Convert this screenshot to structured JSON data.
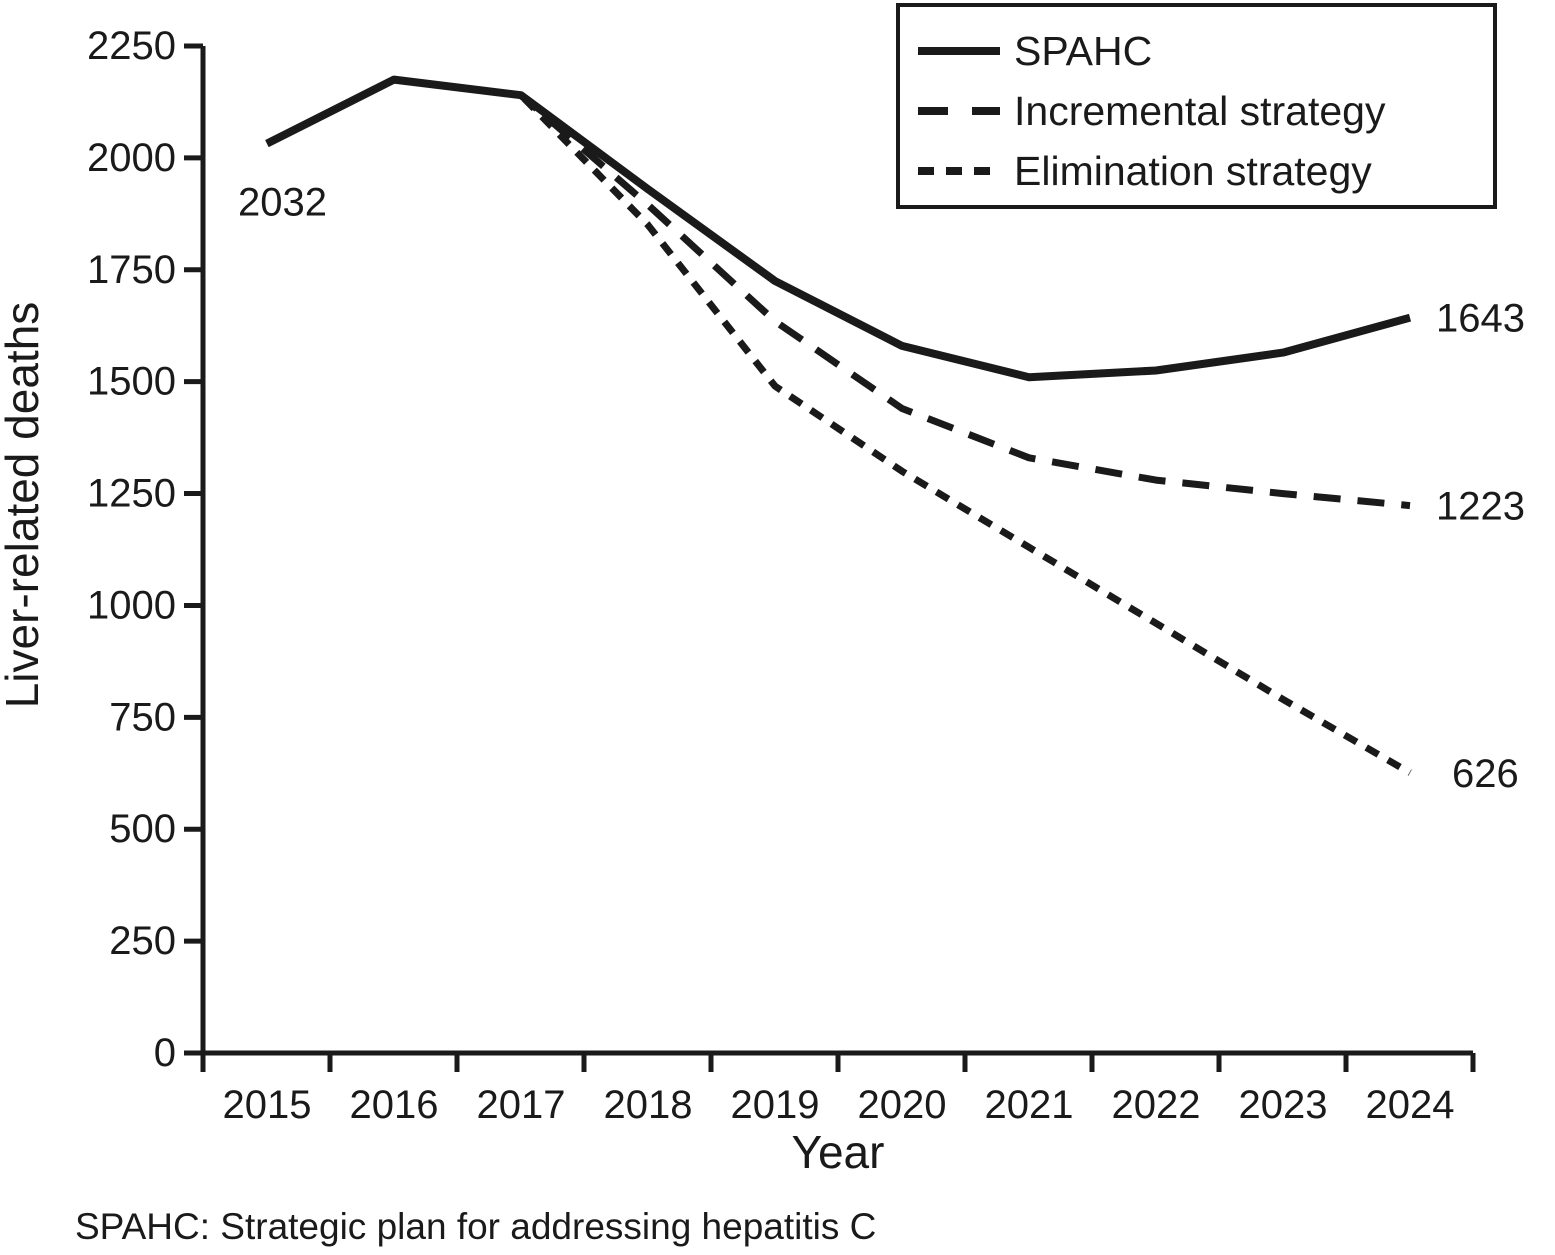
{
  "chart_data": {
    "type": "line",
    "title": "",
    "xlabel": "Year",
    "ylabel": "Liver-related deaths",
    "x": [
      2015,
      2016,
      2017,
      2018,
      2019,
      2020,
      2021,
      2022,
      2023,
      2024
    ],
    "ylim": [
      0,
      2250
    ],
    "yticks": [
      0,
      250,
      500,
      750,
      1000,
      1250,
      1500,
      1750,
      2000,
      2250
    ],
    "grid": false,
    "legend_position": "top-right",
    "series": [
      {
        "name": "SPAHC",
        "style": "solid",
        "values": [
          2032,
          2175,
          2140,
          1930,
          1725,
          1580,
          1510,
          1525,
          1565,
          1643
        ]
      },
      {
        "name": "Incremental strategy",
        "style": "long-dash",
        "values": [
          2032,
          2175,
          2140,
          1895,
          1635,
          1440,
          1330,
          1280,
          1250,
          1223
        ]
      },
      {
        "name": "Elimination strategy",
        "style": "short-dash",
        "values": [
          2032,
          2175,
          2140,
          1850,
          1490,
          1300,
          1130,
          960,
          790,
          626
        ]
      }
    ],
    "annotations": [
      {
        "text": "2032",
        "year": 2015,
        "value": 2032,
        "placement": "below-left"
      },
      {
        "text": "1643",
        "year": 2024,
        "value": 1643,
        "placement": "right"
      },
      {
        "text": "1223",
        "year": 2024,
        "value": 1223,
        "placement": "right"
      },
      {
        "text": "626",
        "year": 2024,
        "value": 626,
        "placement": "right"
      }
    ]
  },
  "footnote": "SPAHC: Strategic plan for addressing hepatitis C",
  "colors": {
    "line": "#1a1a1a",
    "text": "#1a1a1a",
    "background": "#ffffff"
  }
}
